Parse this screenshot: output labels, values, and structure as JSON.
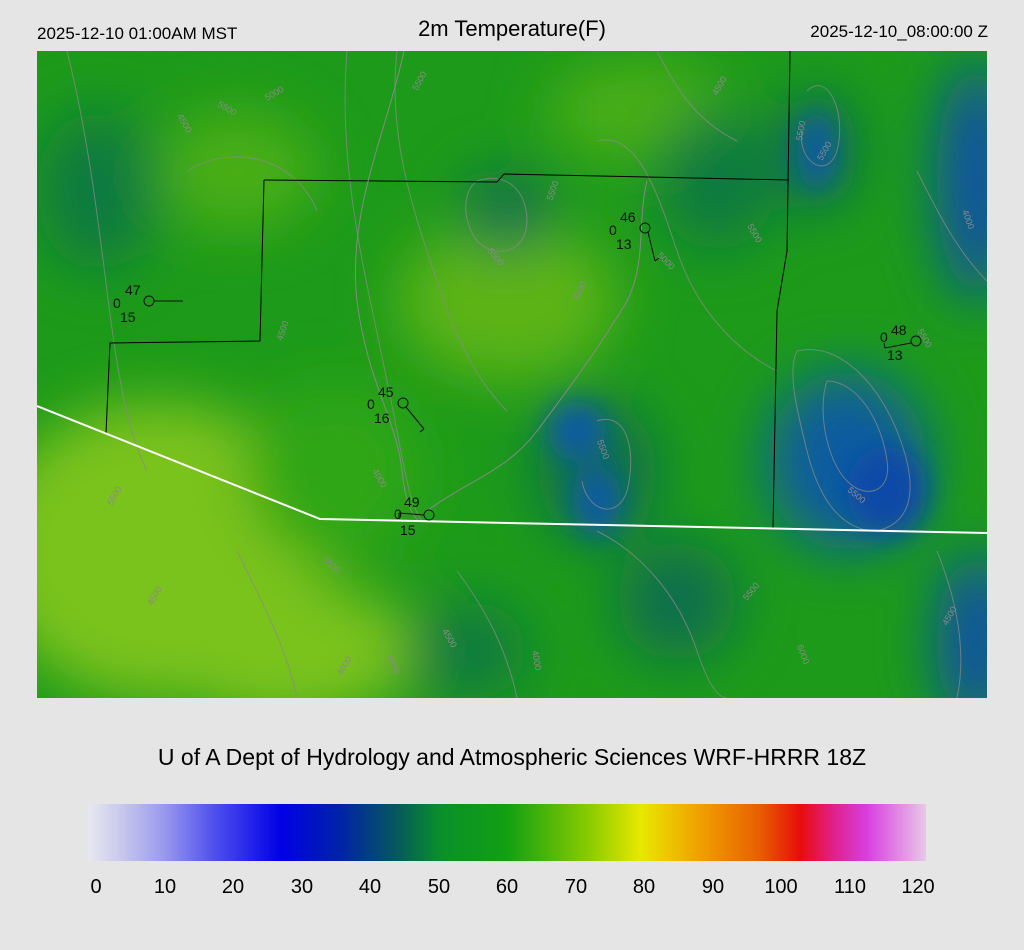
{
  "header": {
    "valid_local": "2025-12-10 01:00AM MST",
    "title": "2m Temperature(F)",
    "valid_utc": "2025-12-10_08:00:00 Z"
  },
  "credit": "U of A Dept of Hydrology and Atmospheric Sciences WRF-HRRR 18Z",
  "colorbar": {
    "ticks": [
      "0",
      "10",
      "20",
      "30",
      "40",
      "50",
      "60",
      "70",
      "80",
      "90",
      "100",
      "110",
      "120"
    ]
  },
  "stations": [
    {
      "temp": "47",
      "left": "0",
      "bottom": "15"
    },
    {
      "temp": "46",
      "left": "0",
      "bottom": "13"
    },
    {
      "temp": "48",
      "left": "0",
      "bottom": "13"
    },
    {
      "temp": "45",
      "left": "0",
      "bottom": "16"
    },
    {
      "temp": "49",
      "left": "0",
      "bottom": "15"
    }
  ],
  "contour_labels": [
    "5500",
    "5000",
    "4500",
    "4000",
    "6000"
  ],
  "colors": {
    "background": "#e5e5e5",
    "field_green": "#1d9a1a",
    "field_light": "#7ac21a",
    "field_dark": "#0c6e4e",
    "field_blue": "#0a5ca0",
    "border_line": "#000000",
    "boundary_line": "#ffffff"
  }
}
